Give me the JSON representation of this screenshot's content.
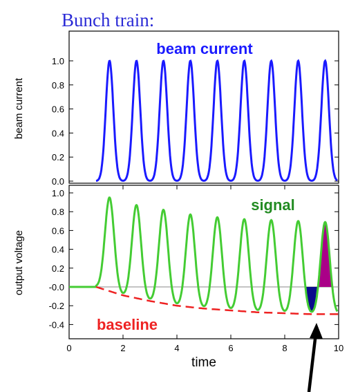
{
  "title": "Bunch train:",
  "colors": {
    "title": "#2b2bd6",
    "beam": "#1a1aff",
    "signal": "#44cc33",
    "signal_label": "#228b22",
    "baseline": "#ee2222",
    "negative_fill": "#0a0a8c",
    "positive_fill": "#aa0088",
    "arrow": "#000000"
  },
  "chart_data": [
    {
      "type": "line",
      "ylabel": "beam current",
      "xlim": [
        0,
        10
      ],
      "ylim": [
        0,
        1.1
      ],
      "yticks": [
        "0.0",
        "0.2",
        "0.4",
        "0.6",
        "0.8",
        "1.0"
      ],
      "grid": false,
      "annotation": "beam current",
      "series": [
        {
          "name": "beam current",
          "peaks_x": [
            1.5,
            2.5,
            3.5,
            4.5,
            5.5,
            6.5,
            7.5,
            8.5,
            9.5
          ],
          "peak_value": 1.0,
          "min_value": 0.0
        }
      ]
    },
    {
      "type": "line",
      "ylabel": "output voltage",
      "xlabel": "time",
      "xlim": [
        0,
        10
      ],
      "ylim": [
        -0.45,
        1.0
      ],
      "xticks": [
        "0",
        "2",
        "4",
        "6",
        "8",
        "10"
      ],
      "yticks": [
        "-0.4",
        "-0.2",
        "-0.0",
        "0.2",
        "0.4",
        "0.6",
        "0.8",
        "1.0"
      ],
      "grid": false,
      "series": [
        {
          "name": "signal",
          "peaks_x": [
            1.5,
            2.5,
            3.5,
            4.5,
            5.5,
            6.5,
            7.5,
            8.5,
            9.5
          ],
          "peak_values": [
            0.95,
            0.87,
            0.82,
            0.77,
            0.74,
            0.72,
            0.71,
            0.7,
            0.69
          ],
          "flat_until_x": 1.0
        },
        {
          "name": "baseline",
          "x": [
            1.0,
            2.0,
            3.0,
            4.0,
            5.0,
            6.0,
            7.0,
            8.0,
            9.0,
            10.0
          ],
          "values": [
            0.0,
            -0.09,
            -0.15,
            -0.2,
            -0.23,
            -0.25,
            -0.27,
            -0.28,
            -0.29,
            -0.29
          ]
        }
      ],
      "annotations": [
        "signal",
        "baseline"
      ]
    }
  ]
}
